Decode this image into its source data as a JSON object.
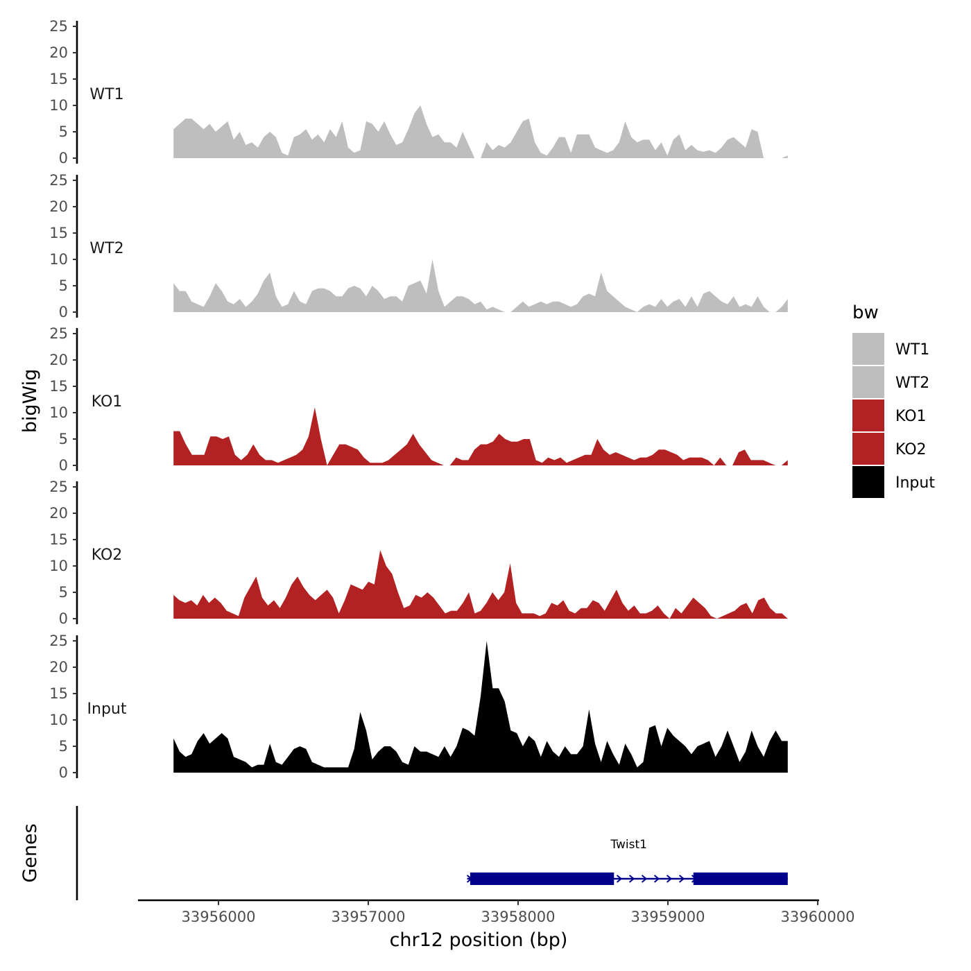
{
  "chart_data": {
    "type": "area",
    "ylabel": "bigWig",
    "xlabel": "chr12 position (bp)",
    "chromosome": "chr12",
    "xlim": [
      33955500,
      33960000
    ],
    "x_ticks": [
      33956000,
      33957000,
      33958000,
      33959000,
      33960000
    ],
    "x_tick_labels": [
      "33956000",
      "33957000",
      "33958000",
      "33959000",
      "33960000"
    ],
    "ylim": [
      0,
      25
    ],
    "y_ticks": [
      0,
      5,
      10,
      15,
      20,
      25
    ],
    "y_tick_labels": [
      "0",
      "5",
      "10",
      "15",
      "20",
      "25"
    ],
    "x_start": 33955700,
    "x_end": 33959800,
    "legend": {
      "title": "bw",
      "placement": "right",
      "entries": [
        {
          "label": "WT1",
          "color": "#bebebe"
        },
        {
          "label": "WT2",
          "color": "#bebebe"
        },
        {
          "label": "KO1",
          "color": "#b22222"
        },
        {
          "label": "KO2",
          "color": "#b22222"
        },
        {
          "label": "Input",
          "color": "#000000"
        }
      ]
    },
    "series": [
      {
        "name": "WT1",
        "color": "#bebebe",
        "values": [
          5.5,
          6.5,
          7.5,
          7.5,
          6.5,
          5.5,
          6.5,
          5,
          6,
          7,
          3.5,
          5,
          2.5,
          3,
          2,
          4,
          5,
          4,
          1,
          0.5,
          4,
          4.5,
          5.5,
          3.5,
          4.5,
          3,
          5.5,
          4,
          7,
          2,
          1,
          1.5,
          7,
          6.5,
          5,
          7,
          4.5,
          2.5,
          3,
          5.5,
          8.5,
          10,
          6.5,
          4,
          4.5,
          3,
          3,
          2,
          5,
          2.5,
          0,
          0,
          3,
          1.5,
          2.5,
          2,
          3,
          5,
          7,
          7.5,
          3,
          1,
          0.5,
          2,
          4,
          4,
          1,
          4.5,
          4.5,
          4.5,
          2,
          1.5,
          1,
          1.5,
          3,
          7,
          4,
          3,
          3.5,
          3.5,
          1.5,
          3,
          0.5,
          3.5,
          4.5,
          1.5,
          2.5,
          1.5,
          1.2,
          1.5,
          1,
          2,
          3.5,
          4,
          3,
          2,
          5.5,
          5,
          0,
          0,
          0,
          0,
          0.5
        ]
      },
      {
        "name": "WT2",
        "color": "#bebebe",
        "values": [
          5.5,
          4,
          4,
          2,
          1.5,
          1,
          3,
          5.5,
          4,
          2,
          1.5,
          2.5,
          1,
          2,
          3.5,
          6,
          7.5,
          3,
          1,
          1.5,
          4,
          2,
          1.5,
          4,
          4.5,
          4.5,
          4,
          3,
          3,
          4.5,
          5,
          4.5,
          3,
          5,
          4,
          2.5,
          3,
          3,
          2,
          5,
          5.5,
          6,
          3.5,
          10,
          4,
          1,
          2,
          3,
          3,
          2.5,
          1.5,
          2,
          0.5,
          1,
          0.5,
          0,
          0,
          1,
          2,
          1,
          1.5,
          2,
          1.5,
          2,
          2,
          1.5,
          1,
          1.5,
          3,
          3.5,
          3,
          7.5,
          4,
          3,
          2,
          1,
          0.5,
          0,
          1,
          1.5,
          1,
          2.5,
          1,
          2,
          2.5,
          1,
          3,
          1,
          3.5,
          4,
          3,
          2,
          1.5,
          3,
          1,
          1.5,
          1,
          3,
          1,
          0,
          0,
          1,
          2.5
        ]
      },
      {
        "name": "KO1",
        "color": "#b22222",
        "values": [
          6.5,
          6.5,
          4,
          2,
          2,
          2,
          5.5,
          5.5,
          5,
          5.5,
          2,
          1,
          2,
          4,
          2,
          1,
          1,
          0.5,
          1,
          1.5,
          2,
          3,
          5.5,
          11,
          5,
          0,
          2,
          4,
          4,
          3.5,
          3,
          1.5,
          0.5,
          0.5,
          0.5,
          1,
          2,
          3,
          4,
          6,
          4,
          2.5,
          1,
          0.5,
          0,
          0,
          1.5,
          1,
          1,
          3,
          4,
          4,
          4.5,
          6,
          5,
          4.5,
          4.5,
          5,
          5,
          1,
          0.5,
          1.5,
          1,
          1.5,
          0.5,
          1,
          1.5,
          2,
          2,
          5,
          3,
          2,
          2.5,
          2,
          1.5,
          1,
          1.5,
          1.5,
          2,
          3,
          3,
          2.5,
          2,
          1,
          1.5,
          1.5,
          1.5,
          1,
          0,
          1.5,
          0,
          0,
          2.5,
          3,
          1,
          1,
          1,
          0.5,
          0,
          0,
          1
        ]
      },
      {
        "name": "KO2",
        "color": "#b22222",
        "values": [
          4.5,
          3.5,
          3,
          3.5,
          2.5,
          4.5,
          3,
          4,
          3,
          1.5,
          1,
          0.5,
          4,
          6,
          8,
          4,
          2.5,
          3.5,
          2,
          4,
          6.5,
          8,
          6,
          4.5,
          3.5,
          4.5,
          5.5,
          4,
          1,
          3.5,
          6.5,
          6,
          5.5,
          7,
          6.5,
          13,
          10,
          8.5,
          5,
          2,
          2.5,
          4.5,
          4,
          5,
          4,
          2.5,
          1,
          1.5,
          1.5,
          3,
          5,
          1,
          1.5,
          3,
          5,
          3.5,
          5,
          10.5,
          3,
          1,
          1,
          1,
          0.5,
          1,
          3,
          2.5,
          3.5,
          1.5,
          1,
          2,
          2,
          3.5,
          3,
          1.5,
          3.5,
          5.5,
          3,
          1.5,
          2.5,
          1,
          1,
          1.5,
          2.5,
          1,
          0,
          2,
          1,
          2.5,
          4,
          3,
          2,
          0.5,
          0,
          0.5,
          1,
          1.5,
          2.5,
          3,
          1,
          3.5,
          4,
          2,
          1,
          1,
          0
        ]
      },
      {
        "name": "Input",
        "color": "#000000",
        "values": [
          6.5,
          4,
          3,
          3.5,
          6,
          7.5,
          5.5,
          6.5,
          7.5,
          6.5,
          3,
          2.5,
          2,
          1,
          1.5,
          1.5,
          5.5,
          2,
          1.5,
          3,
          4.5,
          5,
          4.5,
          2,
          1.5,
          1,
          1,
          1,
          1,
          1,
          4.5,
          11.5,
          8,
          2.5,
          4,
          5,
          5,
          4,
          2,
          1.5,
          5,
          4,
          4,
          3.5,
          3,
          5,
          3,
          5,
          8.5,
          8,
          7,
          14.5,
          25,
          16,
          16,
          13.5,
          8,
          7.5,
          5,
          7,
          6,
          3,
          6,
          4,
          3,
          5,
          3.5,
          3.5,
          5,
          12,
          5.5,
          2,
          6,
          3.5,
          1.5,
          5.5,
          3.5,
          1,
          2,
          8.5,
          9,
          5,
          8.5,
          7,
          6,
          5,
          3.5,
          5,
          5.5,
          6,
          3,
          5,
          8,
          5,
          2,
          4,
          8,
          5,
          3,
          6,
          8,
          6,
          6
        ]
      }
    ]
  },
  "tracks": [
    {
      "label": "WT1"
    },
    {
      "label": "WT2"
    },
    {
      "label": "KO1"
    },
    {
      "label": "KO2"
    },
    {
      "label": "Input"
    }
  ],
  "genes_track": {
    "ylabel": "Genes",
    "color": "#00008b",
    "genes": [
      {
        "name": "Twist1",
        "start": 33957660,
        "end": 33959800,
        "strand": "+",
        "exons": [
          [
            33957680,
            33958640
          ],
          [
            33959170,
            33959800
          ]
        ]
      }
    ]
  }
}
